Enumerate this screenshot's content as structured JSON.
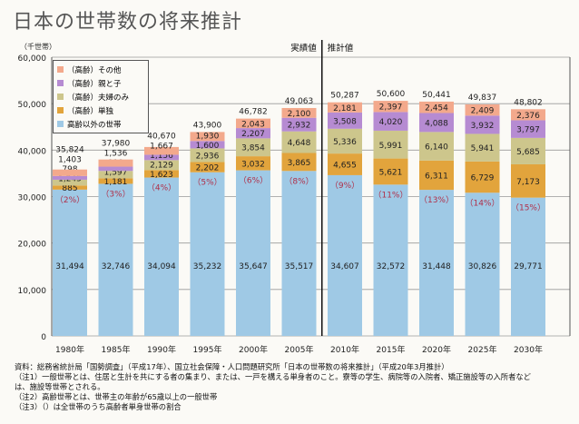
{
  "chart_data": {
    "type": "stacked-bar",
    "title": "日本の世帯数の将来推計",
    "ylabel": "（千世帯）",
    "ylim": [
      0,
      60000
    ],
    "yticks": [
      "0",
      "10,000",
      "20,000",
      "30,000",
      "40,000",
      "50,000",
      "60,000"
    ],
    "grid": true,
    "legend_placement": "top-left",
    "categories": [
      "1980年",
      "1985年",
      "1990年",
      "1995年",
      "2000年",
      "2005年",
      "2010年",
      "2015年",
      "2020年",
      "2025年",
      "2030年"
    ],
    "series": [
      {
        "name": "高齢以外の世帯",
        "color": "#9fc9e5",
        "values": [
          31494,
          32746,
          34094,
          35232,
          35647,
          35517,
          34607,
          32572,
          31448,
          30826,
          29771
        ],
        "labels": [
          "31,494",
          "32,746",
          "34,094",
          "35,232",
          "35,647",
          "35,517",
          "34,607",
          "32,572",
          "31,448",
          "30,826",
          "29,771"
        ]
      },
      {
        "name": "（高齢）単独",
        "color": "#e2a43c",
        "values": [
          885,
          1181,
          1623,
          2202,
          3032,
          3865,
          4655,
          5621,
          6311,
          6729,
          7173
        ],
        "labels": [
          "885",
          "1,181",
          "1,623",
          "2,202",
          "3,032",
          "3,865",
          "4,655",
          "5,621",
          "6,311",
          "6,729",
          "7,173"
        ]
      },
      {
        "name": "（高齢）夫婦のみ",
        "color": "#cdc68c",
        "values": [
          1245,
          1597,
          2129,
          2936,
          3854,
          4648,
          5336,
          5991,
          6140,
          5941,
          5685
        ],
        "labels": [
          "1,245",
          "1,597",
          "2,129",
          "2,936",
          "3,854",
          "4,648",
          "5,336",
          "5,991",
          "6,140",
          "5,941",
          "5,685"
        ]
      },
      {
        "name": "（高齢）親と子",
        "color": "#b68bd2",
        "values": [
          798,
          919,
          1156,
          1600,
          2207,
          2932,
          3508,
          4020,
          4088,
          3932,
          3797
        ],
        "labels": [
          "798",
          "919",
          "1,156",
          "1,600",
          "2,207",
          "2,932",
          "3,508",
          "4,020",
          "4,088",
          "3,932",
          "3,797"
        ]
      },
      {
        "name": "（高齢）その他",
        "color": "#f3a98c",
        "values": [
          1403,
          1536,
          1667,
          1930,
          2043,
          2100,
          2181,
          2397,
          2454,
          2409,
          2376
        ],
        "labels": [
          "1,403",
          "1,536",
          "1,667",
          "1,930",
          "2,043",
          "2,100",
          "2,181",
          "2,397",
          "2,454",
          "2,409",
          "2,376"
        ]
      }
    ],
    "totals": [
      "35,824",
      "37,980",
      "40,670",
      "43,900",
      "46,782",
      "49,063",
      "50,287",
      "50,600",
      "50,441",
      "49,837",
      "48,802"
    ],
    "elderly_single_share": [
      "（2%）",
      "（3%）",
      "（4%）",
      "（5%）",
      "（6%）",
      "（8%）",
      "（9%）",
      "（11%）",
      "（13%）",
      "（14%）",
      "（15%）"
    ],
    "annotations": {
      "actual": "実績値",
      "projected": "推計値"
    }
  },
  "notes": [
    "資料：総務省統計局「国勢調査」（平成17年）、国立社会保障・人口問題研究所「日本の世帯数の将来推計」（平成20年3月推計）",
    "（注1）一般世帯とは、住居と生計を共にする者の集まり、または、一戸を構える単身者のこと。寮等の学生、病院等の入院者、矯正施設等の入所者など",
    "は、施設等世帯とされる。",
    "（注2）高齢世帯とは、世帯主の年齢が65歳以上の一般世帯",
    "（注3）（）は全世帯のうち高齢者単身世帯の割合"
  ]
}
